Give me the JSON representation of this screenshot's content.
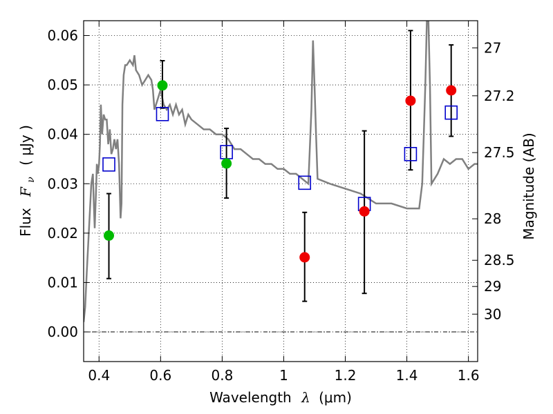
{
  "chart_data": {
    "type": "scatter",
    "xlabel_text": "Wavelength",
    "xlabel_symbol": "λ",
    "xlabel_unit": "(μm)",
    "ylabel_text": "Flux",
    "ylabel_symbol": "F",
    "ylabel_sub": "ν",
    "ylabel_unit": "( μJy )",
    "ylabel_right": "Magnitude (AB)",
    "xlim": [
      0.35,
      1.63
    ],
    "ylim": [
      -0.006,
      0.063
    ],
    "grid": true,
    "x_ticks": [
      0.4,
      0.6,
      0.8,
      1.0,
      1.2,
      1.4,
      1.6
    ],
    "x_tick_labels": [
      "0.4",
      "0.6",
      "0.8",
      "1",
      "1.2",
      "1.4",
      "1.6"
    ],
    "y_ticks": [
      0.0,
      0.01,
      0.02,
      0.03,
      0.04,
      0.05,
      0.06
    ],
    "y_tick_labels": [
      "0.00",
      "0.01",
      "0.02",
      "0.03",
      "0.04",
      "0.05",
      "0.06"
    ],
    "right_ticks": [
      {
        "label": "27",
        "flux": 0.0575
      },
      {
        "label": "27.2",
        "flux": 0.0478
      },
      {
        "label": "27.5",
        "flux": 0.0363
      },
      {
        "label": "28",
        "flux": 0.0229
      },
      {
        "label": "28.5",
        "flux": 0.0145
      },
      {
        "label": "29",
        "flux": 0.0092
      },
      {
        "label": "30",
        "flux": 0.0036
      }
    ],
    "colors": {
      "model": "#808080",
      "optical": "#00bb00",
      "infrared": "#ee0000",
      "model_points": "#0000cc",
      "error_bars": "#000000"
    },
    "series": [
      {
        "kind": "model_spectrum",
        "x": [
          0.35,
          0.355,
          0.36,
          0.365,
          0.37,
          0.375,
          0.38,
          0.383,
          0.386,
          0.39,
          0.393,
          0.396,
          0.4,
          0.403,
          0.406,
          0.41,
          0.415,
          0.42,
          0.425,
          0.43,
          0.435,
          0.44,
          0.445,
          0.45,
          0.455,
          0.46,
          0.465,
          0.47,
          0.473,
          0.476,
          0.48,
          0.485,
          0.49,
          0.5,
          0.51,
          0.515,
          0.52,
          0.53,
          0.54,
          0.55,
          0.56,
          0.57,
          0.575,
          0.58,
          0.59,
          0.6,
          0.61,
          0.62,
          0.63,
          0.64,
          0.65,
          0.66,
          0.67,
          0.68,
          0.69,
          0.7,
          0.72,
          0.74,
          0.76,
          0.78,
          0.8,
          0.82,
          0.84,
          0.86,
          0.88,
          0.9,
          0.92,
          0.94,
          0.96,
          0.98,
          1.0,
          1.02,
          1.04,
          1.06,
          1.08,
          1.09,
          1.095,
          1.1,
          1.105,
          1.11,
          1.15,
          1.2,
          1.25,
          1.3,
          1.35,
          1.4,
          1.44,
          1.45,
          1.455,
          1.46,
          1.465,
          1.47,
          1.475,
          1.48,
          1.5,
          1.52,
          1.54,
          1.56,
          1.58,
          1.6,
          1.62,
          1.63
        ],
        "y": [
          0.002,
          0.005,
          0.012,
          0.018,
          0.024,
          0.03,
          0.032,
          0.026,
          0.021,
          0.028,
          0.034,
          0.032,
          0.034,
          0.038,
          0.046,
          0.04,
          0.044,
          0.043,
          0.043,
          0.038,
          0.041,
          0.036,
          0.037,
          0.039,
          0.037,
          0.039,
          0.034,
          0.023,
          0.026,
          0.046,
          0.052,
          0.054,
          0.054,
          0.055,
          0.054,
          0.056,
          0.053,
          0.052,
          0.05,
          0.051,
          0.052,
          0.051,
          0.049,
          0.045,
          0.047,
          0.049,
          0.046,
          0.045,
          0.046,
          0.044,
          0.046,
          0.044,
          0.045,
          0.042,
          0.044,
          0.043,
          0.042,
          0.041,
          0.041,
          0.04,
          0.04,
          0.039,
          0.037,
          0.037,
          0.036,
          0.035,
          0.035,
          0.034,
          0.034,
          0.033,
          0.033,
          0.032,
          0.032,
          0.031,
          0.03,
          0.045,
          0.059,
          0.05,
          0.04,
          0.031,
          0.03,
          0.029,
          0.028,
          0.026,
          0.026,
          0.025,
          0.025,
          0.03,
          0.04,
          0.05,
          0.063,
          0.063,
          0.05,
          0.03,
          0.032,
          0.035,
          0.034,
          0.035,
          0.035,
          0.033,
          0.034,
          0.034
        ]
      },
      {
        "kind": "observed",
        "name": "optical",
        "points": [
          {
            "x": 0.432,
            "y": 0.0195,
            "err_low": 0.0108,
            "err_high": 0.028
          },
          {
            "x": 0.606,
            "y": 0.0499,
            "err_low": 0.0453,
            "err_high": 0.0549
          },
          {
            "x": 0.814,
            "y": 0.0341,
            "err_low": 0.0271,
            "err_high": 0.0412
          }
        ]
      },
      {
        "kind": "observed",
        "name": "infrared",
        "points": [
          {
            "x": 1.068,
            "y": 0.0151,
            "err_low": 0.0062,
            "err_high": 0.0242
          },
          {
            "x": 1.262,
            "y": 0.0244,
            "err_low": 0.0078,
            "err_high": 0.0407
          },
          {
            "x": 1.412,
            "y": 0.0468,
            "err_low": 0.0328,
            "err_high": 0.061
          },
          {
            "x": 1.544,
            "y": 0.0489,
            "err_low": 0.0396,
            "err_high": 0.0581
          }
        ]
      },
      {
        "kind": "model_points",
        "x": [
          0.432,
          0.606,
          0.814,
          1.068,
          1.262,
          1.412,
          1.544
        ],
        "y": [
          0.0339,
          0.0441,
          0.0364,
          0.0302,
          0.0259,
          0.036,
          0.0444
        ]
      }
    ]
  }
}
